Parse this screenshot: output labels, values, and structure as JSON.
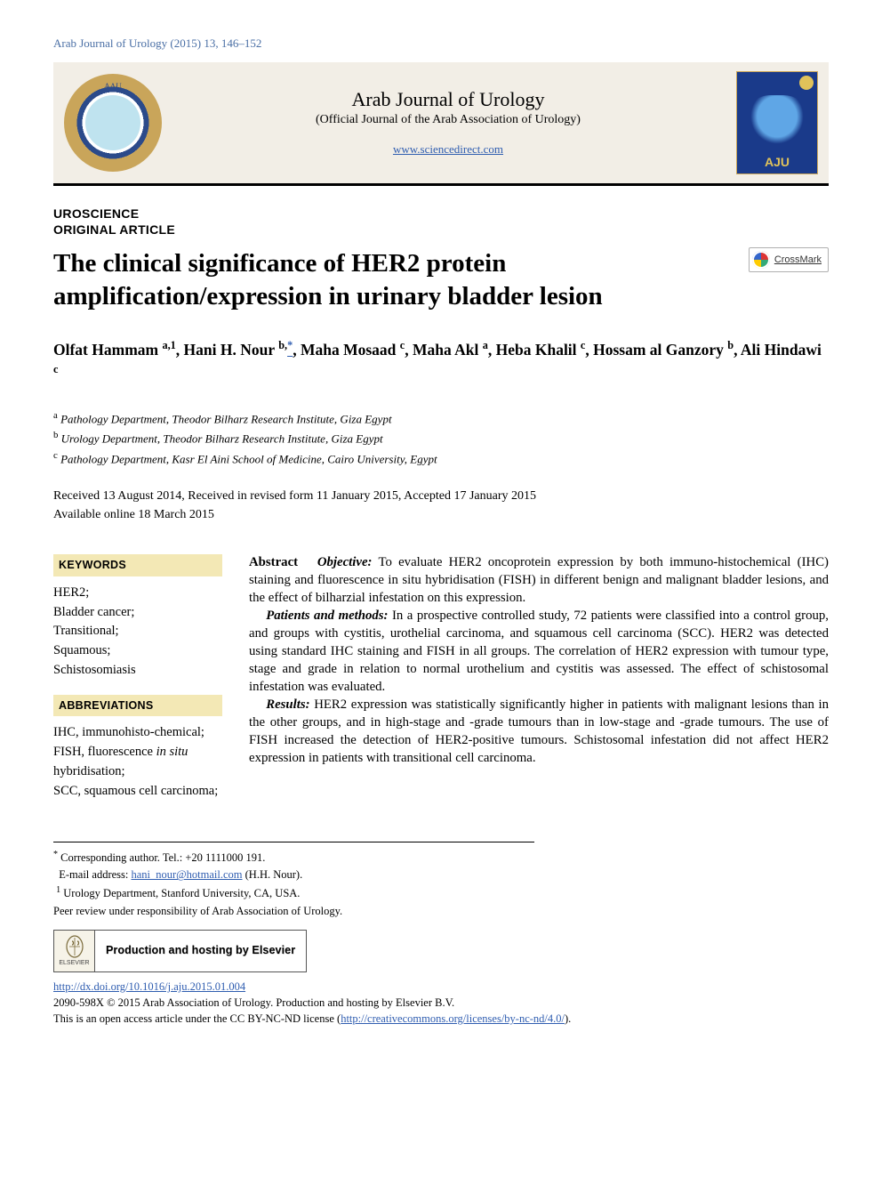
{
  "journal_ref": "Arab Journal of Urology (2015) 13, 146–152",
  "banner": {
    "crest_text": "AAU",
    "journal_name": "Arab Journal of Urology",
    "journal_subtitle": "(Official Journal of the Arab Association of Urology)",
    "site_link": "www.sciencedirect.com",
    "cover_label": "AJU"
  },
  "section_labels": {
    "l1": "UROSCIENCE",
    "l2": "ORIGINAL ARTICLE"
  },
  "title": "The clinical significance of HER2 protein amplification/expression in urinary bladder lesion",
  "crossmark_label": "CrossMark",
  "authors_html": "Olfat Hammam <sup>a,1</sup>, Hani H. Nour <sup>b,</sup><a href='#' class='star-link'><sup>*</sup></a>, Maha Mosaad <sup>c</sup>, Maha Akl <sup>a</sup>, Heba Khalil <sup>c</sup>, Hossam al Ganzory <sup>b</sup>, Ali Hindawi <sup>c</sup>",
  "affiliations": [
    {
      "sup": "a",
      "text": "Pathology Department, Theodor Bilharz Research Institute, Giza Egypt"
    },
    {
      "sup": "b",
      "text": "Urology Department, Theodor Bilharz Research Institute, Giza Egypt"
    },
    {
      "sup": "c",
      "text": "Pathology Department, Kasr El Aini School of Medicine, Cairo University, Egypt"
    }
  ],
  "dates": {
    "line1": "Received 13 August 2014, Received in revised form 11 January 2015, Accepted 17 January 2015",
    "line2": "Available online 18 March 2015"
  },
  "keywords": {
    "heading": "KEYWORDS",
    "items": "HER2;\nBladder cancer;\nTransitional;\nSquamous;\nSchistosomiasis"
  },
  "abbrev": {
    "heading": "ABBREVIATIONS",
    "items": "IHC, immunohisto-chemical;\nFISH, fluorescence in situ hybridisation;\nSCC, squamous cell carcinoma;"
  },
  "abstract": {
    "lead_label": "Abstract",
    "objective_label": "Objective:",
    "objective_text": "To evaluate HER2 oncoprotein expression by both immuno-histochemical (IHC) staining and fluorescence in situ hybridisation (FISH) in different benign and malignant bladder lesions, and the effect of bilharzial infestation on this expression.",
    "pm_label": "Patients and methods:",
    "pm_text": "In a prospective controlled study, 72 patients were classified into a control group, and groups with cystitis, urothelial carcinoma, and squamous cell carcinoma (SCC). HER2 was detected using standard IHC staining and FISH in all groups. The correlation of HER2 expression with tumour type, stage and grade in relation to normal urothelium and cystitis was assessed. The effect of schistosomal infestation was evaluated.",
    "res_label": "Results:",
    "res_text": "HER2 expression was statistically significantly higher in patients with malignant lesions than in the other groups, and in high-stage and -grade tumours than in low-stage and -grade tumours. The use of FISH increased the detection of HER2-positive tumours. Schistosomal infestation did not affect HER2 expression in patients with transitional cell carcinoma."
  },
  "footnotes": {
    "corresponding": "Corresponding author. Tel.: +20 1111000 191.",
    "email_label": "E-mail address:",
    "email": "hani_nour@hotmail.com",
    "email_tail": "(H.H. Nour).",
    "note1": "Urology Department, Stanford University, CA, USA.",
    "peer": "Peer review under responsibility of Arab Association of Urology."
  },
  "elsevier": {
    "small": "ELSEVIER",
    "text": "Production and hosting by Elsevier"
  },
  "doi": "http://dx.doi.org/10.1016/j.aju.2015.01.004",
  "copyright": {
    "line1": "2090-598X © 2015 Arab Association of Urology. Production and hosting by Elsevier B.V.",
    "line2_pre": "This is an open access article under the CC BY-NC-ND license (",
    "license_link": "http://creativecommons.org/licenses/by-nc-nd/4.0/",
    "line2_post": ")."
  },
  "colors": {
    "link": "#2f5db0",
    "banner_bg": "#f2eee6",
    "kw_bg": "#f3e8b5",
    "rule": "#000000"
  }
}
